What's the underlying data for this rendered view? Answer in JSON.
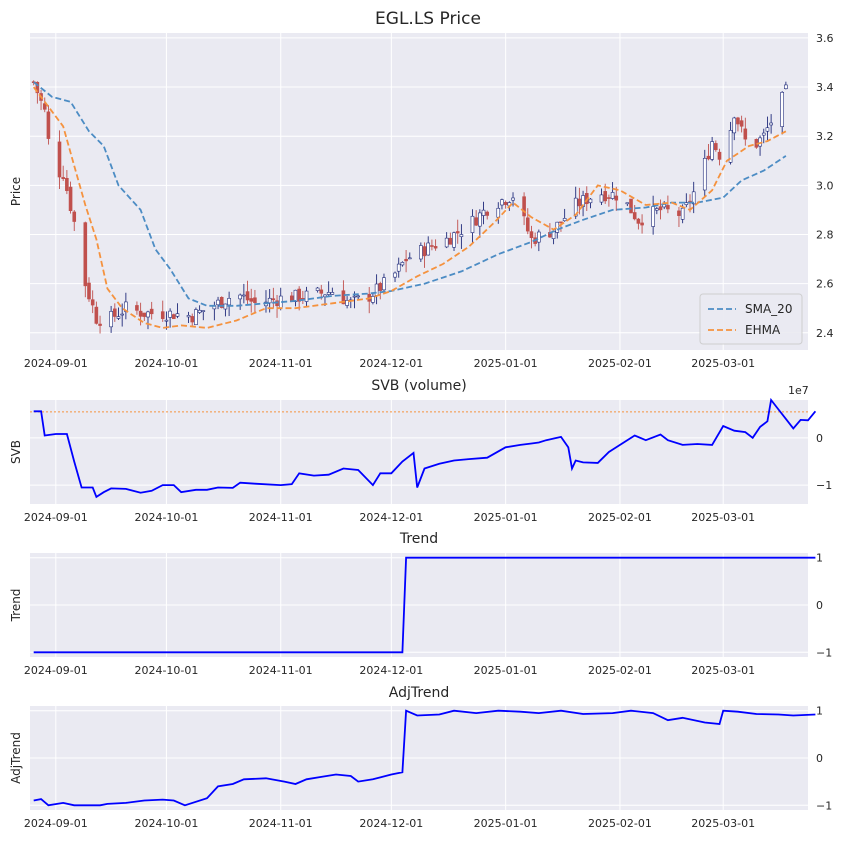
{
  "figure": {
    "title": "EGL.LS Price",
    "date_ticks": [
      "2024-09-01",
      "2024-10-01",
      "2024-11-01",
      "2024-12-01",
      "2025-01-01",
      "2025-02-01",
      "2025-03-01"
    ]
  },
  "chart_data": [
    {
      "type": "candlestick",
      "title": "EGL.LS Price",
      "ylabel": "Price",
      "ylim": [
        2.33,
        3.62
      ],
      "yticks": [
        "2.4",
        "2.6",
        "2.8",
        "3.0",
        "3.2",
        "3.4",
        "3.6"
      ],
      "x_range": [
        "2024-08-25",
        "2025-03-24"
      ],
      "start_date": "2024-08-26",
      "end_date": "2025-03-18",
      "anchors": [
        [
          "2024-08-26",
          3.42
        ],
        [
          "2024-08-29",
          3.3
        ],
        [
          "2024-08-31",
          3.06
        ],
        [
          "2024-09-03",
          3.05
        ],
        [
          "2024-09-06",
          2.85
        ],
        [
          "2024-09-09",
          2.6
        ],
        [
          "2024-09-12",
          2.46
        ],
        [
          "2024-09-15",
          2.45
        ],
        [
          "2024-09-20",
          2.5
        ],
        [
          "2024-09-25",
          2.48
        ],
        [
          "2024-10-01",
          2.48
        ],
        [
          "2024-10-08",
          2.47
        ],
        [
          "2024-10-15",
          2.52
        ],
        [
          "2024-10-20",
          2.56
        ],
        [
          "2024-10-25",
          2.52
        ],
        [
          "2024-11-01",
          2.54
        ],
        [
          "2024-11-08",
          2.55
        ],
        [
          "2024-11-15",
          2.57
        ],
        [
          "2024-11-20",
          2.52
        ],
        [
          "2024-11-25",
          2.55
        ],
        [
          "2024-12-01",
          2.62
        ],
        [
          "2024-12-05",
          2.7
        ],
        [
          "2024-12-10",
          2.74
        ],
        [
          "2024-12-16",
          2.78
        ],
        [
          "2024-12-22",
          2.84
        ],
        [
          "2024-12-28",
          2.92
        ],
        [
          "2025-01-03",
          2.96
        ],
        [
          "2025-01-08",
          2.78
        ],
        [
          "2025-01-14",
          2.82
        ],
        [
          "2025-01-20",
          2.92
        ],
        [
          "2025-01-26",
          2.97
        ],
        [
          "2025-02-01",
          2.96
        ],
        [
          "2025-02-06",
          2.86
        ],
        [
          "2025-02-12",
          2.9
        ],
        [
          "2025-02-18",
          2.88
        ],
        [
          "2025-02-22",
          3.0
        ],
        [
          "2025-02-26",
          3.18
        ],
        [
          "2025-03-01",
          3.1
        ],
        [
          "2025-03-04",
          3.3
        ],
        [
          "2025-03-08",
          3.14
        ],
        [
          "2025-03-12",
          3.2
        ],
        [
          "2025-03-18",
          3.38
        ]
      ],
      "series": [
        {
          "name": "SMA_20",
          "color": "#4c8cc4",
          "dashed": true,
          "points": [
            [
              "2024-08-26",
              3.42
            ],
            [
              "2024-08-31",
              3.36
            ],
            [
              "2024-09-05",
              3.34
            ],
            [
              "2024-09-10",
              3.22
            ],
            [
              "2024-09-14",
              3.16
            ],
            [
              "2024-09-18",
              3.0
            ],
            [
              "2024-09-24",
              2.9
            ],
            [
              "2024-09-28",
              2.74
            ],
            [
              "2024-10-02",
              2.66
            ],
            [
              "2024-10-07",
              2.54
            ],
            [
              "2024-10-12",
              2.51
            ],
            [
              "2024-10-20",
              2.51
            ],
            [
              "2024-10-28",
              2.52
            ],
            [
              "2024-11-05",
              2.53
            ],
            [
              "2024-11-15",
              2.55
            ],
            [
              "2024-11-25",
              2.56
            ],
            [
              "2024-12-01",
              2.57
            ],
            [
              "2024-12-10",
              2.6
            ],
            [
              "2024-12-20",
              2.65
            ],
            [
              "2024-12-30",
              2.72
            ],
            [
              "2025-01-08",
              2.77
            ],
            [
              "2025-01-15",
              2.82
            ],
            [
              "2025-01-22",
              2.86
            ],
            [
              "2025-01-30",
              2.9
            ],
            [
              "2025-02-08",
              2.91
            ],
            [
              "2025-02-15",
              2.93
            ],
            [
              "2025-02-22",
              2.93
            ],
            [
              "2025-03-01",
              2.95
            ],
            [
              "2025-03-06",
              3.02
            ],
            [
              "2025-03-12",
              3.06
            ],
            [
              "2025-03-18",
              3.12
            ]
          ]
        },
        {
          "name": "EHMA",
          "color": "#f5923e",
          "dashed": true,
          "points": [
            [
              "2024-08-26",
              3.4
            ],
            [
              "2024-08-31",
              3.3
            ],
            [
              "2024-09-03",
              3.24
            ],
            [
              "2024-09-06",
              3.08
            ],
            [
              "2024-09-09",
              2.92
            ],
            [
              "2024-09-12",
              2.78
            ],
            [
              "2024-09-15",
              2.58
            ],
            [
              "2024-09-19",
              2.5
            ],
            [
              "2024-09-25",
              2.44
            ],
            [
              "2024-09-30",
              2.42
            ],
            [
              "2024-10-05",
              2.43
            ],
            [
              "2024-10-12",
              2.42
            ],
            [
              "2024-10-20",
              2.45
            ],
            [
              "2024-10-28",
              2.5
            ],
            [
              "2024-11-05",
              2.5
            ],
            [
              "2024-11-15",
              2.52
            ],
            [
              "2024-11-25",
              2.54
            ],
            [
              "2024-12-01",
              2.57
            ],
            [
              "2024-12-08",
              2.63
            ],
            [
              "2024-12-15",
              2.68
            ],
            [
              "2024-12-22",
              2.75
            ],
            [
              "2024-12-29",
              2.85
            ],
            [
              "2025-01-03",
              2.93
            ],
            [
              "2025-01-08",
              2.87
            ],
            [
              "2025-01-14",
              2.82
            ],
            [
              "2025-01-20",
              2.88
            ],
            [
              "2025-01-26",
              3.0
            ],
            [
              "2025-02-01",
              2.98
            ],
            [
              "2025-02-08",
              2.92
            ],
            [
              "2025-02-15",
              2.93
            ],
            [
              "2025-02-20",
              2.9
            ],
            [
              "2025-02-26",
              2.98
            ],
            [
              "2025-03-02",
              3.1
            ],
            [
              "2025-03-08",
              3.16
            ],
            [
              "2025-03-13",
              3.18
            ],
            [
              "2025-03-18",
              3.22
            ]
          ]
        }
      ],
      "legend": {
        "position": "bottom-right",
        "entries": [
          "SMA_20",
          "EHMA"
        ]
      },
      "up_color": "#ffffff",
      "down_color": "#c0504d",
      "edge_color": "#1f2a7a",
      "grid": true
    },
    {
      "type": "line",
      "title": "SVB (volume)",
      "ylabel": "SVB",
      "ylim": [
        -14000000,
        8000000
      ],
      "yticks": [
        "−1",
        "0"
      ],
      "yticks_values": [
        -10000000,
        0
      ],
      "offset_label": "1e7",
      "reference_line": {
        "value": 5500000,
        "color": "#f5923e",
        "dotted": true
      },
      "line_color": "#0000ff",
      "points": [
        [
          "2024-08-26",
          5600000
        ],
        [
          "2024-08-28",
          5600000
        ],
        [
          "2024-08-29",
          500000
        ],
        [
          "2024-09-01",
          800000
        ],
        [
          "2024-09-04",
          800000
        ],
        [
          "2024-09-06",
          -5000000
        ],
        [
          "2024-09-08",
          -10500000
        ],
        [
          "2024-09-11",
          -10500000
        ],
        [
          "2024-09-12",
          -12500000
        ],
        [
          "2024-09-14",
          -11500000
        ],
        [
          "2024-09-16",
          -10700000
        ],
        [
          "2024-09-20",
          -10800000
        ],
        [
          "2024-09-24",
          -11600000
        ],
        [
          "2024-09-27",
          -11200000
        ],
        [
          "2024-09-30",
          -10000000
        ],
        [
          "2024-10-03",
          -10000000
        ],
        [
          "2024-10-05",
          -11500000
        ],
        [
          "2024-10-09",
          -11000000
        ],
        [
          "2024-10-12",
          -11000000
        ],
        [
          "2024-10-15",
          -10500000
        ],
        [
          "2024-10-19",
          -10600000
        ],
        [
          "2024-10-21",
          -9500000
        ],
        [
          "2024-10-25",
          -9700000
        ],
        [
          "2024-11-01",
          -10000000
        ],
        [
          "2024-11-04",
          -9800000
        ],
        [
          "2024-11-06",
          -7500000
        ],
        [
          "2024-11-10",
          -8000000
        ],
        [
          "2024-11-14",
          -7800000
        ],
        [
          "2024-11-18",
          -6500000
        ],
        [
          "2024-11-22",
          -6800000
        ],
        [
          "2024-11-26",
          -10000000
        ],
        [
          "2024-11-28",
          -7500000
        ],
        [
          "2024-12-01",
          -7500000
        ],
        [
          "2024-12-04",
          -5000000
        ],
        [
          "2024-12-07",
          -3200000
        ],
        [
          "2024-12-08",
          -10500000
        ],
        [
          "2024-12-10",
          -6500000
        ],
        [
          "2024-12-14",
          -5500000
        ],
        [
          "2024-12-18",
          -4800000
        ],
        [
          "2024-12-22",
          -4500000
        ],
        [
          "2024-12-27",
          -4200000
        ],
        [
          "2025-01-01",
          -2000000
        ],
        [
          "2025-01-05",
          -1500000
        ],
        [
          "2025-01-08",
          -1200000
        ],
        [
          "2025-01-10",
          -1000000
        ],
        [
          "2025-01-12",
          -500000
        ],
        [
          "2025-01-16",
          200000
        ],
        [
          "2025-01-18",
          -2000000
        ],
        [
          "2025-01-19",
          -6500000
        ],
        [
          "2025-01-20",
          -4800000
        ],
        [
          "2025-01-22",
          -5200000
        ],
        [
          "2025-01-26",
          -5300000
        ],
        [
          "2025-01-29",
          -3000000
        ],
        [
          "2025-02-01",
          -1500000
        ],
        [
          "2025-02-05",
          500000
        ],
        [
          "2025-02-08",
          -500000
        ],
        [
          "2025-02-12",
          700000
        ],
        [
          "2025-02-14",
          -500000
        ],
        [
          "2025-02-18",
          -1500000
        ],
        [
          "2025-02-22",
          -1300000
        ],
        [
          "2025-02-26",
          -1500000
        ],
        [
          "2025-03-01",
          2500000
        ],
        [
          "2025-03-04",
          1500000
        ],
        [
          "2025-03-07",
          1200000
        ],
        [
          "2025-03-09",
          0
        ],
        [
          "2025-03-11",
          2300000
        ],
        [
          "2025-03-13",
          3500000
        ],
        [
          "2025-03-14",
          8000000
        ],
        [
          "2025-03-16",
          6000000
        ],
        [
          "2025-03-18",
          4000000
        ],
        [
          "2025-03-20",
          2000000
        ],
        [
          "2025-03-22",
          3800000
        ],
        [
          "2025-03-24",
          3700000
        ],
        [
          "2025-03-26",
          5600000
        ]
      ]
    },
    {
      "type": "line",
      "title": "Trend",
      "ylabel": "Trend",
      "ylim": [
        -1.1,
        1.1
      ],
      "yticks": [
        "−1",
        "0",
        "1"
      ],
      "yticks_values": [
        -1,
        0,
        1
      ],
      "line_color": "#0000ff",
      "points": [
        [
          "2024-08-26",
          -1
        ],
        [
          "2024-12-04",
          -1
        ],
        [
          "2024-12-05",
          1
        ],
        [
          "2025-03-26",
          1
        ]
      ]
    },
    {
      "type": "line",
      "title": "AdjTrend",
      "ylabel": "AdjTrend",
      "ylim": [
        -1.1,
        1.1
      ],
      "yticks": [
        "−1",
        "0",
        "1"
      ],
      "yticks_values": [
        -1,
        0,
        1
      ],
      "line_color": "#0000ff",
      "points": [
        [
          "2024-08-26",
          -0.9
        ],
        [
          "2024-08-28",
          -0.87
        ],
        [
          "2024-08-30",
          -1.0
        ],
        [
          "2024-09-03",
          -0.95
        ],
        [
          "2024-09-06",
          -1.0
        ],
        [
          "2024-09-13",
          -1.0
        ],
        [
          "2024-09-15",
          -0.97
        ],
        [
          "2024-09-20",
          -0.95
        ],
        [
          "2024-09-25",
          -0.9
        ],
        [
          "2024-09-30",
          -0.88
        ],
        [
          "2024-10-03",
          -0.9
        ],
        [
          "2024-10-06",
          -1.0
        ],
        [
          "2024-10-12",
          -0.85
        ],
        [
          "2024-10-15",
          -0.6
        ],
        [
          "2024-10-19",
          -0.55
        ],
        [
          "2024-10-22",
          -0.45
        ],
        [
          "2024-10-28",
          -0.43
        ],
        [
          "2024-11-02",
          -0.5
        ],
        [
          "2024-11-05",
          -0.55
        ],
        [
          "2024-11-08",
          -0.45
        ],
        [
          "2024-11-12",
          -0.4
        ],
        [
          "2024-11-16",
          -0.35
        ],
        [
          "2024-11-20",
          -0.38
        ],
        [
          "2024-11-22",
          -0.5
        ],
        [
          "2024-11-26",
          -0.45
        ],
        [
          "2024-12-01",
          -0.35
        ],
        [
          "2024-12-04",
          -0.3
        ],
        [
          "2024-12-05",
          1.0
        ],
        [
          "2024-12-08",
          0.9
        ],
        [
          "2024-12-14",
          0.92
        ],
        [
          "2024-12-18",
          1.0
        ],
        [
          "2024-12-24",
          0.95
        ],
        [
          "2024-12-30",
          1.0
        ],
        [
          "2025-01-05",
          0.98
        ],
        [
          "2025-01-10",
          0.95
        ],
        [
          "2025-01-16",
          1.0
        ],
        [
          "2025-01-22",
          0.93
        ],
        [
          "2025-01-30",
          0.95
        ],
        [
          "2025-02-04",
          1.0
        ],
        [
          "2025-02-10",
          0.95
        ],
        [
          "2025-02-14",
          0.8
        ],
        [
          "2025-02-18",
          0.85
        ],
        [
          "2025-02-24",
          0.75
        ],
        [
          "2025-02-28",
          0.72
        ],
        [
          "2025-03-01",
          1.0
        ],
        [
          "2025-03-05",
          0.98
        ],
        [
          "2025-03-10",
          0.93
        ],
        [
          "2025-03-16",
          0.92
        ],
        [
          "2025-03-20",
          0.9
        ],
        [
          "2025-03-26",
          0.92
        ]
      ]
    }
  ]
}
